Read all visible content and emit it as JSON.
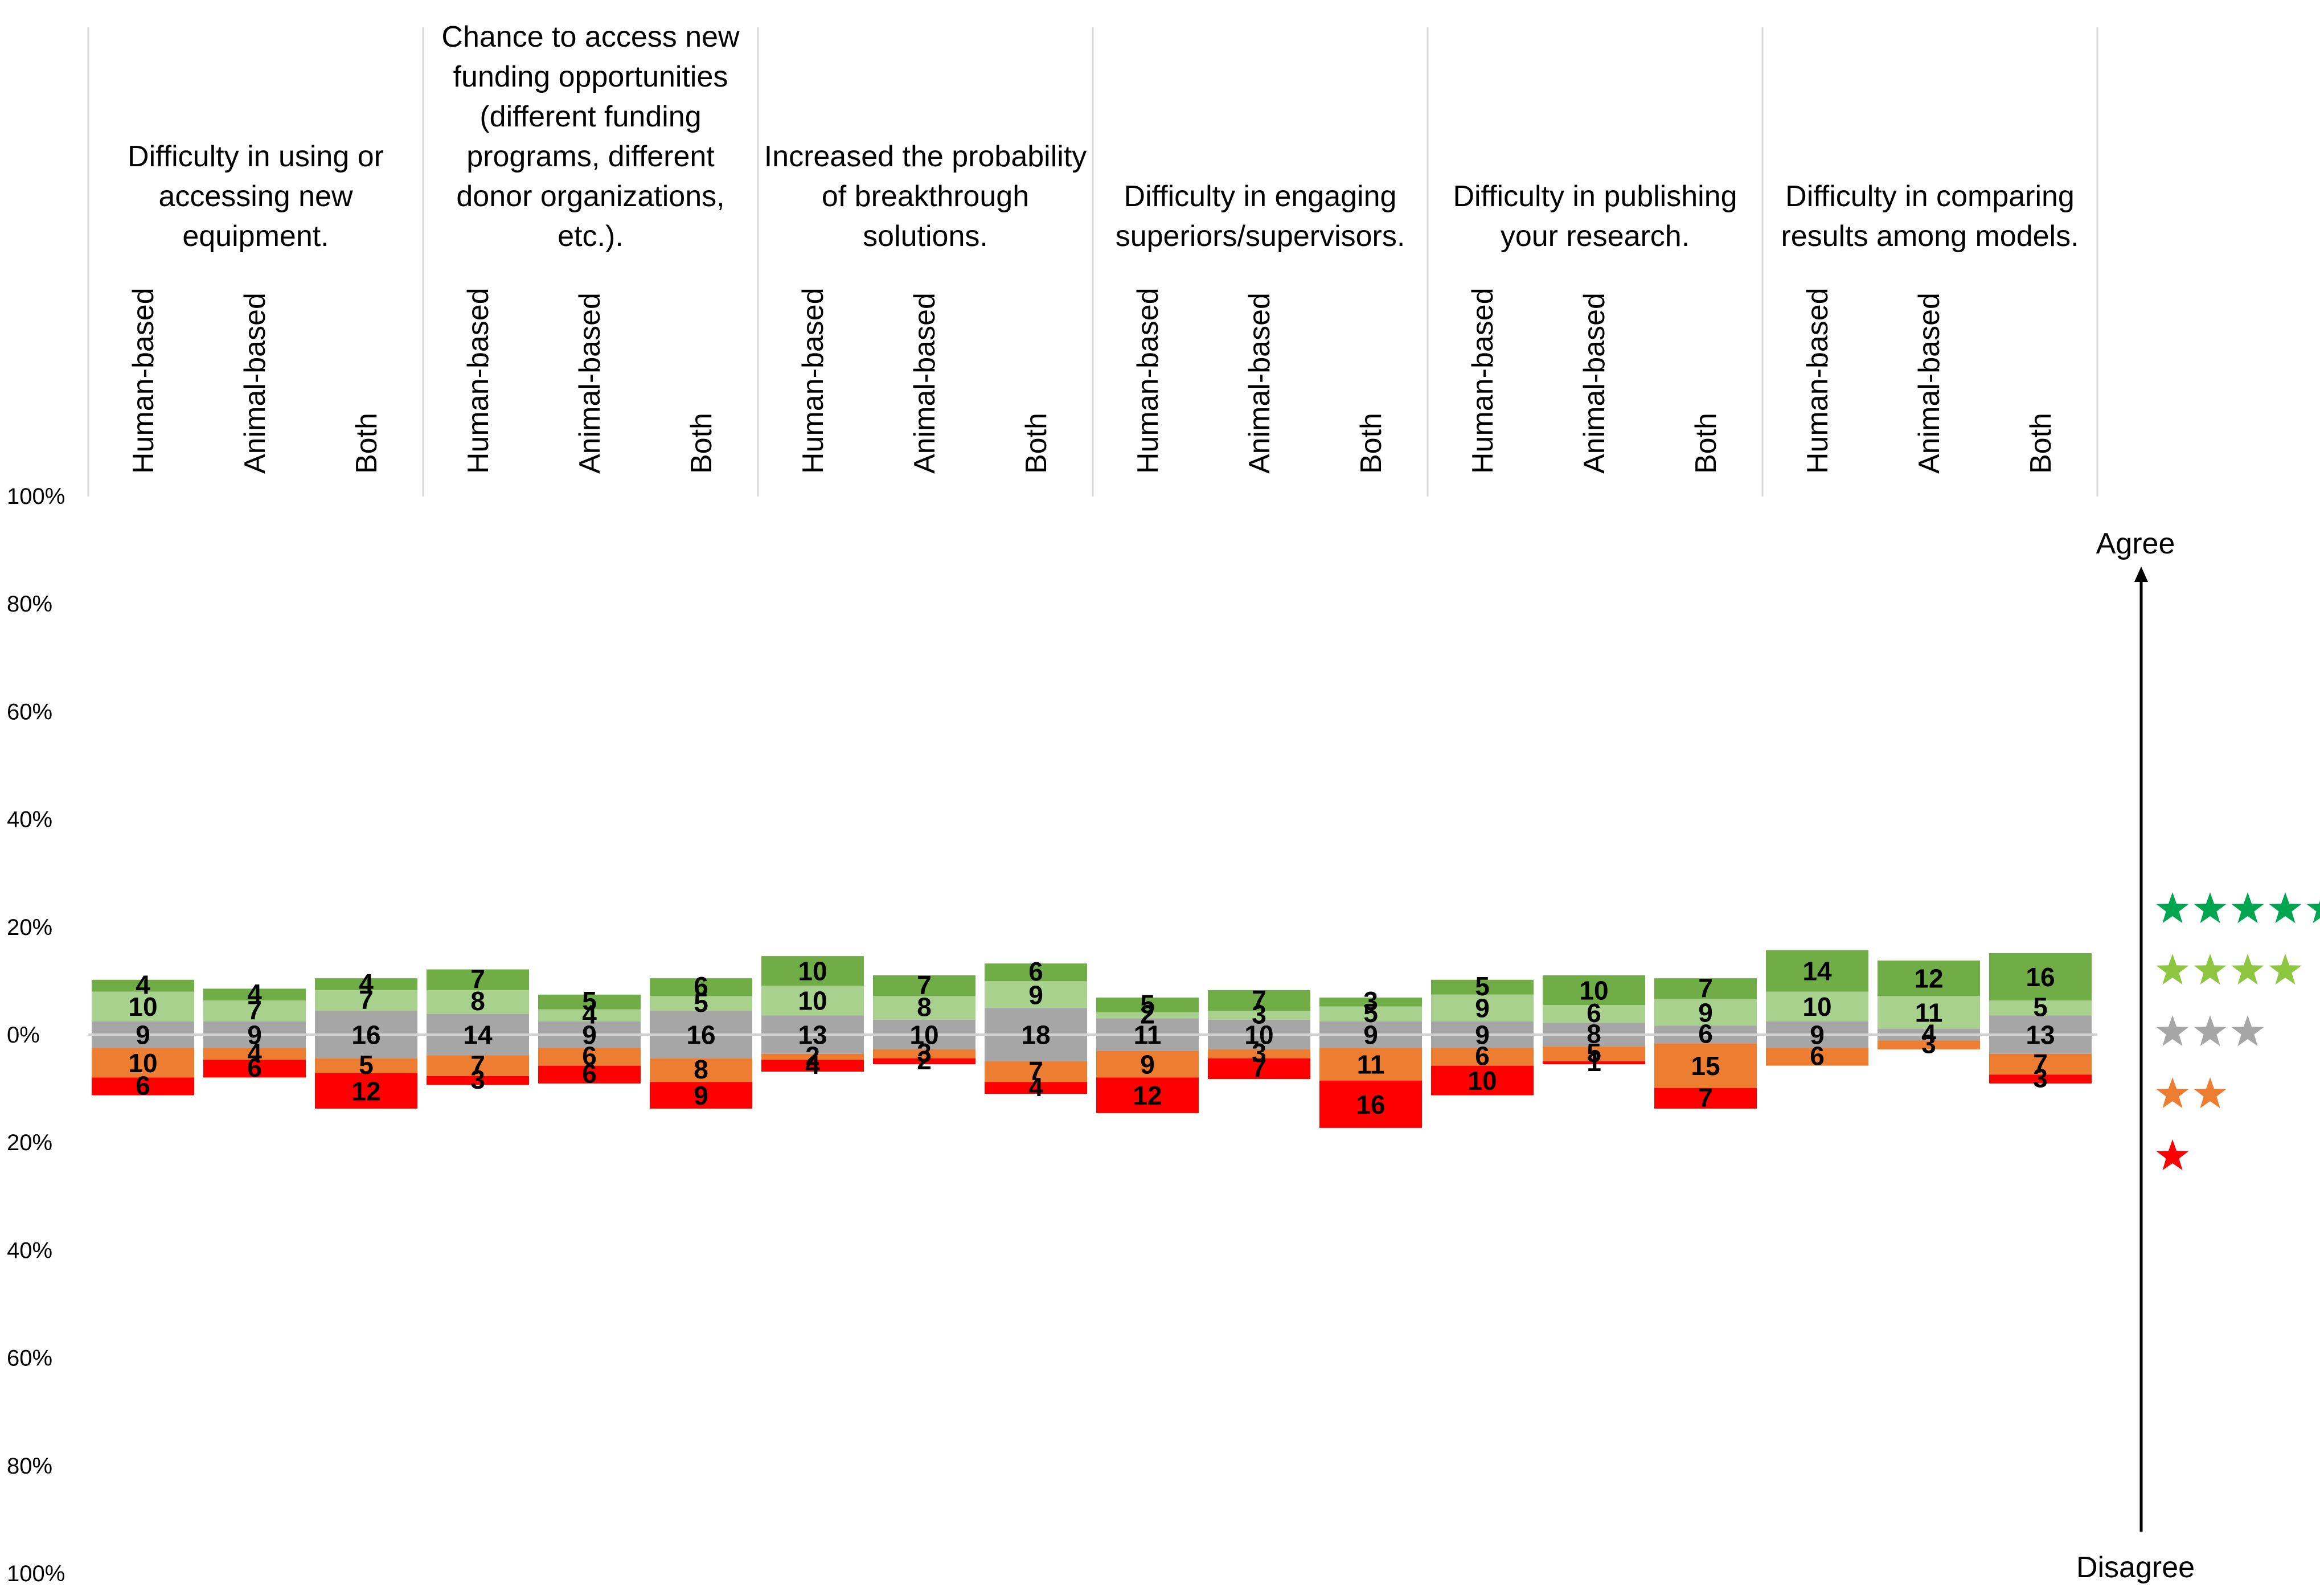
{
  "chart_data": {
    "type": "bar",
    "subtype": "diverging-stacked",
    "title": "",
    "y_axis": {
      "range_percent": [
        -100,
        100
      ],
      "tick_labels": [
        "100%",
        "80%",
        "60%",
        "40%",
        "20%",
        "0%",
        "20%",
        "40%",
        "60%",
        "80%",
        "100%"
      ]
    },
    "axis_labels": {
      "top": "Agree",
      "bottom": "Disagree"
    },
    "legend": {
      "placement": "right",
      "entries": [
        {
          "stars": 5,
          "color": "#00A550",
          "level": "5"
        },
        {
          "stars": 4,
          "color": "#8DC63F",
          "level": "4"
        },
        {
          "stars": 3,
          "color": "#A6A6A6",
          "level": "3"
        },
        {
          "stars": 2,
          "color": "#ED7D31",
          "level": "2"
        },
        {
          "stars": 1,
          "color": "#FF0000",
          "level": "1"
        }
      ]
    },
    "colors": {
      "5": "#70AD47",
      "4": "#A9D18E",
      "3": "#A6A6A6",
      "2": "#ED7D31",
      "1": "#FF0000"
    },
    "series_order": [
      "1",
      "2",
      "3",
      "4",
      "5"
    ],
    "groups": [
      {
        "title": [
          "Difficulty in using or",
          "accessing new",
          "equipment."
        ],
        "bars": [
          {
            "label": "Human-based",
            "counts": [
              6,
              10,
              9,
              10,
              4
            ]
          },
          {
            "label": "Animal-based",
            "counts": [
              6,
              4,
              9,
              7,
              4
            ]
          },
          {
            "label": "Both",
            "counts": [
              12,
              5,
              16,
              7,
              4
            ]
          }
        ]
      },
      {
        "title": [
          "Chance to access new",
          "funding opportunities",
          "(different funding",
          "programs, different",
          "donor organizations,",
          "etc.)."
        ],
        "bars": [
          {
            "label": "Human-based",
            "counts": [
              3,
              7,
              14,
              8,
              7
            ]
          },
          {
            "label": "Animal-based",
            "counts": [
              6,
              6,
              9,
              4,
              5
            ]
          },
          {
            "label": "Both",
            "counts": [
              9,
              8,
              16,
              5,
              6
            ]
          }
        ]
      },
      {
        "title": [
          "Increased the probability",
          "of breakthrough",
          "solutions."
        ],
        "bars": [
          {
            "label": "Human-based",
            "counts": [
              4,
              2,
              13,
              10,
              10
            ]
          },
          {
            "label": "Animal-based",
            "counts": [
              2,
              3,
              10,
              8,
              7
            ]
          },
          {
            "label": "Both",
            "counts": [
              4,
              7,
              18,
              9,
              6
            ]
          }
        ]
      },
      {
        "title": [
          "Difficulty in engaging",
          "superiors/supervisors."
        ],
        "bars": [
          {
            "label": "Human-based",
            "counts": [
              12,
              9,
              11,
              2,
              5
            ]
          },
          {
            "label": "Animal-based",
            "counts": [
              7,
              3,
              10,
              3,
              7
            ]
          },
          {
            "label": "Both",
            "counts": [
              16,
              11,
              9,
              5,
              3
            ]
          }
        ]
      },
      {
        "title": [
          "Difficulty in publishing",
          "your research."
        ],
        "bars": [
          {
            "label": "Human-based",
            "counts": [
              10,
              6,
              9,
              9,
              5
            ]
          },
          {
            "label": "Animal-based",
            "counts": [
              1,
              5,
              8,
              6,
              10
            ]
          },
          {
            "label": "Both",
            "counts": [
              7,
              15,
              6,
              9,
              7
            ]
          }
        ]
      },
      {
        "title": [
          "Difficulty in comparing",
          "results among models."
        ],
        "bars": [
          {
            "label": "Human-based",
            "counts": [
              0,
              6,
              9,
              10,
              14
            ]
          },
          {
            "label": "Animal-based",
            "counts": [
              0,
              3,
              4,
              11,
              12
            ]
          },
          {
            "label": "Both",
            "counts": [
              3,
              7,
              13,
              5,
              16
            ]
          }
        ]
      }
    ]
  }
}
